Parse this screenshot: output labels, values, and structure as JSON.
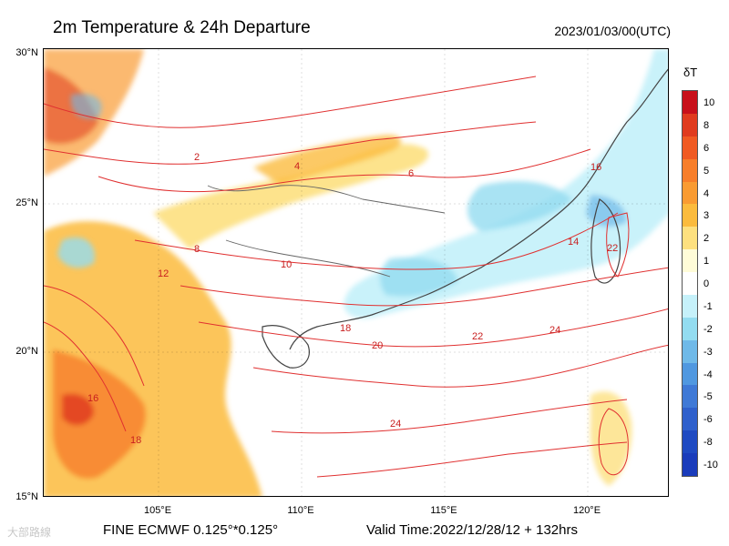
{
  "header": {
    "title": "2m Temperature & 24h Departure",
    "valid_time_utc": "2023/01/03/00(UTC)"
  },
  "map": {
    "lat_labels": [
      "30°N",
      "25°N",
      "20°N",
      "15°N"
    ],
    "lon_labels": [
      "105°E",
      "110°E",
      "115°E",
      "120°E"
    ],
    "contour_labels": [
      "2",
      "4",
      "6",
      "8",
      "10",
      "12",
      "14",
      "16",
      "18",
      "20",
      "22",
      "24"
    ],
    "contour_color": "#e03030"
  },
  "colorbar": {
    "title": "δT",
    "labels": [
      "10",
      "8",
      "6",
      "5",
      "4",
      "3",
      "2",
      "1",
      "0",
      "-1",
      "-2",
      "-3",
      "-4",
      "-5",
      "-6",
      "-8",
      "-10"
    ],
    "colors": [
      "#c8101a",
      "#e03b1e",
      "#f05a22",
      "#f77e2a",
      "#f99b32",
      "#fbbb3d",
      "#fde07f",
      "#fffcd8",
      "#ffffff",
      "#c6f1fa",
      "#93dcf0",
      "#6fb9e8",
      "#5098e0",
      "#3f79d6",
      "#2f60cc",
      "#1f4ac2",
      "#1a3cbb"
    ]
  },
  "footer": {
    "model": "FINE ECMWF 0.125°*0.125°",
    "valid": "Valid Time:2022/12/28/12 + 132hrs",
    "watermark": "大部路線"
  }
}
